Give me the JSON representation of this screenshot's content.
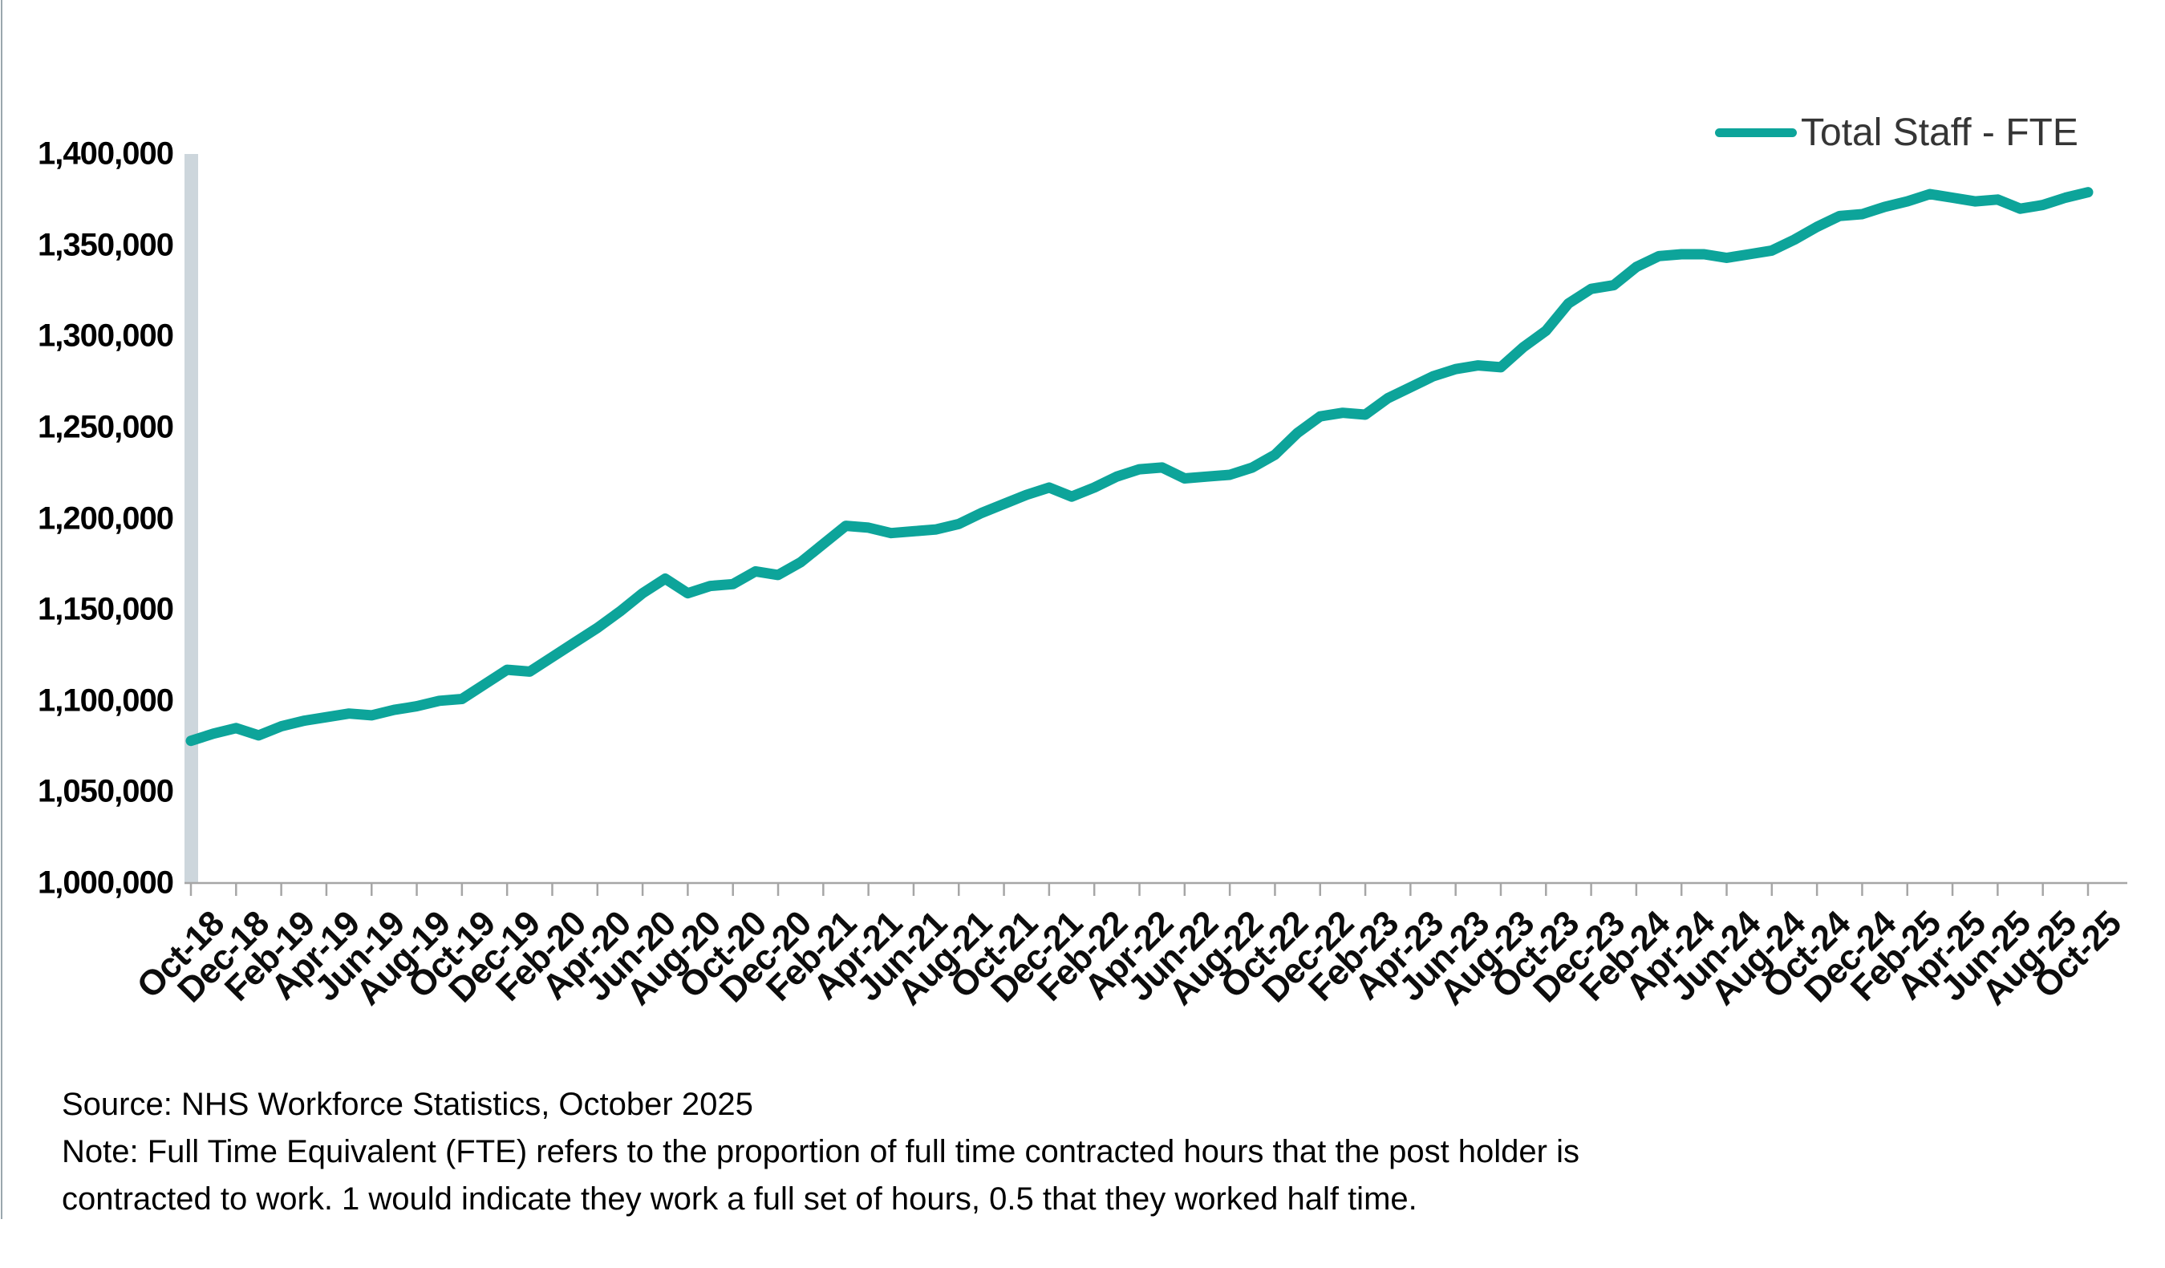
{
  "legend": {
    "label": "Total Staff - FTE"
  },
  "footnote": {
    "source_line": "Source: NHS Workforce Statistics, October 2025",
    "note_line1": "Note: Full Time Equivalent (FTE) refers to the proportion of full time contracted hours that the post holder is",
    "note_line2": "contracted to work. 1 would indicate they work a full set of hours, 0.5 that they worked half time."
  },
  "colors": {
    "line": "#0da49a",
    "axis": "#a6a6a6",
    "y_axis_band": "#cdd6dc",
    "label_text": "#000000"
  },
  "chart_data": {
    "type": "line",
    "title": "",
    "xlabel": "",
    "ylabel": "",
    "grid": false,
    "legend_position": "top-right",
    "ylim": [
      1000000,
      1400000
    ],
    "y_tick_step": 50000,
    "y_tick_labels": [
      "1,400,000",
      "1,350,000",
      "1,300,000",
      "1,250,000",
      "1,200,000",
      "1,150,000",
      "1,100,000",
      "1,050,000",
      "1,000,000"
    ],
    "x_tick_labels": [
      "Oct-18",
      "Dec-18",
      "Feb-19",
      "Apr-19",
      "Jun-19",
      "Aug-19",
      "Oct-19",
      "Dec-19",
      "Feb-20",
      "Apr-20",
      "Jun-20",
      "Aug-20",
      "Oct-20",
      "Dec-20",
      "Feb-21",
      "Apr-21",
      "Jun-21",
      "Aug-21",
      "Oct-21",
      "Dec-21",
      "Feb-22",
      "Apr-22",
      "Jun-22",
      "Aug-22",
      "Oct-22",
      "Dec-22",
      "Feb-23",
      "Apr-23",
      "Jun-23",
      "Aug-23",
      "Oct-23",
      "Dec-23",
      "Feb-24",
      "Apr-24",
      "Jun-24",
      "Aug-24",
      "Oct-24",
      "Dec-24",
      "Feb-25",
      "Apr-25",
      "Jun-25",
      "Aug-25",
      "Oct-25"
    ],
    "x": [
      "Oct-18",
      "Nov-18",
      "Dec-18",
      "Jan-19",
      "Feb-19",
      "Mar-19",
      "Apr-19",
      "May-19",
      "Jun-19",
      "Jul-19",
      "Aug-19",
      "Sep-19",
      "Oct-19",
      "Nov-19",
      "Dec-19",
      "Jan-20",
      "Feb-20",
      "Mar-20",
      "Apr-20",
      "May-20",
      "Jun-20",
      "Jul-20",
      "Aug-20",
      "Sep-20",
      "Oct-20",
      "Nov-20",
      "Dec-20",
      "Jan-21",
      "Feb-21",
      "Mar-21",
      "Apr-21",
      "May-21",
      "Jun-21",
      "Jul-21",
      "Aug-21",
      "Sep-21",
      "Oct-21",
      "Nov-21",
      "Dec-21",
      "Jan-22",
      "Feb-22",
      "Mar-22",
      "Apr-22",
      "May-22",
      "Jun-22",
      "Jul-22",
      "Aug-22",
      "Sep-22",
      "Oct-22",
      "Nov-22",
      "Dec-22",
      "Jan-23",
      "Feb-23",
      "Mar-23",
      "Apr-23",
      "May-23",
      "Jun-23",
      "Jul-23",
      "Aug-23",
      "Sep-23",
      "Oct-23",
      "Nov-23",
      "Dec-23",
      "Jan-24",
      "Feb-24",
      "Mar-24",
      "Apr-24",
      "May-24",
      "Jun-24",
      "Jul-24",
      "Aug-24",
      "Sep-24",
      "Oct-24",
      "Nov-24",
      "Dec-24",
      "Jan-25",
      "Feb-25",
      "Mar-25",
      "Apr-25",
      "May-25",
      "Jun-25",
      "Jul-25",
      "Aug-25",
      "Sep-25",
      "Oct-25"
    ],
    "series": [
      {
        "name": "Total Staff - FTE",
        "color": "#0da49a",
        "values": [
          1078000,
          1082000,
          1085000,
          1081000,
          1086000,
          1089000,
          1091000,
          1093000,
          1092000,
          1095000,
          1097000,
          1100000,
          1101000,
          1109000,
          1117000,
          1116000,
          1124000,
          1132000,
          1140000,
          1149000,
          1159000,
          1167000,
          1159000,
          1163000,
          1164000,
          1171000,
          1169000,
          1176000,
          1186000,
          1196000,
          1195000,
          1192000,
          1193000,
          1194000,
          1197000,
          1203000,
          1208000,
          1213000,
          1217000,
          1212000,
          1217000,
          1223000,
          1227000,
          1228000,
          1222000,
          1223000,
          1224000,
          1228000,
          1235000,
          1247000,
          1256000,
          1258000,
          1257000,
          1266000,
          1272000,
          1278000,
          1282000,
          1284000,
          1283000,
          1294000,
          1303000,
          1318000,
          1326000,
          1328000,
          1338000,
          1344000,
          1345000,
          1345000,
          1343000,
          1345000,
          1347000,
          1353000,
          1360000,
          1366000,
          1367000,
          1371000,
          1374000,
          1378000,
          1376000,
          1374000,
          1375000,
          1370000,
          1372000,
          1376000,
          1379000
        ]
      }
    ]
  }
}
